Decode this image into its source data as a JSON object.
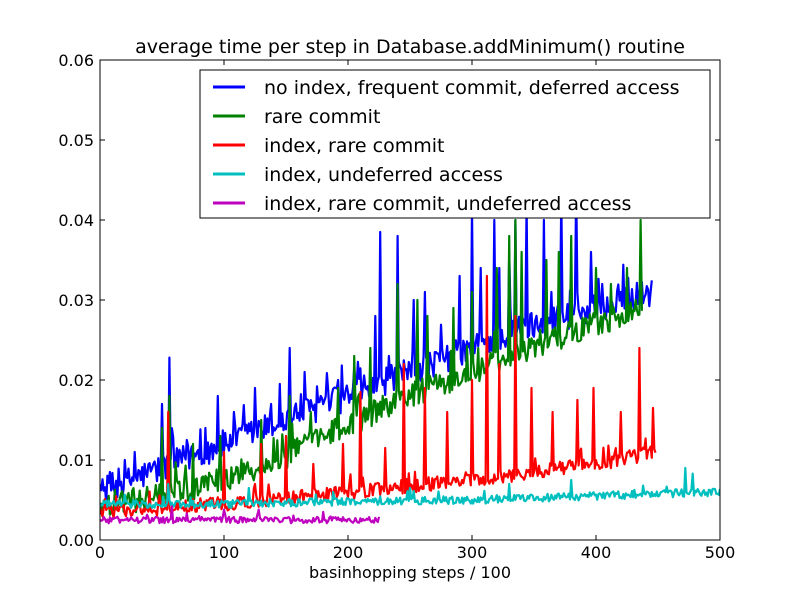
{
  "chart_data": {
    "type": "line",
    "title": "average time per step in Database.addMinimum() routine",
    "xlabel": "basinhopping steps / 100",
    "ylabel": "",
    "xlim": [
      0,
      500
    ],
    "ylim": [
      0,
      0.06
    ],
    "x_ticks": [
      0,
      100,
      200,
      300,
      400,
      500
    ],
    "x_tick_labels": [
      "0",
      "100",
      "200",
      "300",
      "400",
      "500"
    ],
    "y_ticks": [
      0,
      0.01,
      0.02,
      0.03,
      0.04,
      0.05,
      0.06
    ],
    "y_tick_labels": [
      "0.00",
      "0.01",
      "0.02",
      "0.03",
      "0.04",
      "0.05",
      "0.06"
    ],
    "legend_position": "top-right",
    "series": [
      {
        "name": "no index, frequent commit, deferred access",
        "color": "#0000ff",
        "x_start": 0,
        "x_end": 445,
        "trend": [
          [
            0,
            0.006
          ],
          [
            50,
            0.009
          ],
          [
            100,
            0.012
          ],
          [
            150,
            0.015
          ],
          [
            200,
            0.018
          ],
          [
            250,
            0.021
          ],
          [
            300,
            0.024
          ],
          [
            350,
            0.027
          ],
          [
            400,
            0.029
          ],
          [
            445,
            0.031
          ]
        ],
        "noise": 0.0018,
        "spikes": [
          [
            8,
            0.0085
          ],
          [
            20,
            0.01
          ],
          [
            28,
            0.011
          ],
          [
            43,
            0.0095
          ],
          [
            50,
            0.017
          ],
          [
            56,
            0.0228
          ],
          [
            70,
            0.0125
          ],
          [
            85,
            0.014
          ],
          [
            95,
            0.018
          ],
          [
            108,
            0.016
          ],
          [
            125,
            0.019
          ],
          [
            138,
            0.017
          ],
          [
            145,
            0.0195
          ],
          [
            153,
            0.024
          ],
          [
            165,
            0.021
          ],
          [
            178,
            0.018
          ],
          [
            192,
            0.02
          ],
          [
            205,
            0.0215
          ],
          [
            222,
            0.028
          ],
          [
            226,
            0.0385
          ],
          [
            233,
            0.023
          ],
          [
            240,
            0.038
          ],
          [
            253,
            0.03
          ],
          [
            262,
            0.031
          ],
          [
            290,
            0.033
          ],
          [
            300,
            0.0415
          ],
          [
            307,
            0.034
          ],
          [
            318,
            0.04
          ],
          [
            322,
            0.034
          ],
          [
            330,
            0.036
          ],
          [
            335,
            0.04
          ],
          [
            344,
            0.042
          ],
          [
            358,
            0.04
          ],
          [
            364,
            0.031
          ],
          [
            372,
            0.043
          ],
          [
            384,
            0.044
          ],
          [
            396,
            0.036
          ],
          [
            405,
            0.032
          ],
          [
            420,
            0.031
          ]
        ]
      },
      {
        "name": "rare commit",
        "color": "#008000",
        "x_start": 0,
        "x_end": 437,
        "trend": [
          [
            0,
            0.0045
          ],
          [
            50,
            0.0055
          ],
          [
            100,
            0.0075
          ],
          [
            150,
            0.0105
          ],
          [
            200,
            0.0145
          ],
          [
            250,
            0.018
          ],
          [
            300,
            0.021
          ],
          [
            350,
            0.024
          ],
          [
            400,
            0.027
          ],
          [
            437,
            0.029
          ]
        ],
        "noise": 0.0016,
        "spikes": [
          [
            50,
            0.014
          ],
          [
            56,
            0.018
          ],
          [
            75,
            0.012
          ],
          [
            97,
            0.013
          ],
          [
            130,
            0.015
          ],
          [
            153,
            0.018
          ],
          [
            170,
            0.016
          ],
          [
            192,
            0.019
          ],
          [
            205,
            0.023
          ],
          [
            218,
            0.024
          ],
          [
            240,
            0.032
          ],
          [
            256,
            0.03
          ],
          [
            264,
            0.028
          ],
          [
            285,
            0.029
          ],
          [
            300,
            0.031
          ],
          [
            320,
            0.034
          ],
          [
            330,
            0.038
          ],
          [
            335,
            0.04
          ],
          [
            340,
            0.036
          ],
          [
            360,
            0.035
          ],
          [
            370,
            0.036
          ],
          [
            380,
            0.038
          ],
          [
            400,
            0.034
          ],
          [
            412,
            0.032
          ],
          [
            425,
            0.034
          ],
          [
            436,
            0.04
          ]
        ]
      },
      {
        "name": "index, rare commit",
        "color": "#ff0000",
        "x_start": 0,
        "x_end": 448,
        "trend": [
          [
            0,
            0.0035
          ],
          [
            50,
            0.004
          ],
          [
            100,
            0.0045
          ],
          [
            150,
            0.0052
          ],
          [
            200,
            0.006
          ],
          [
            250,
            0.0068
          ],
          [
            300,
            0.0075
          ],
          [
            350,
            0.0085
          ],
          [
            400,
            0.0095
          ],
          [
            448,
            0.011
          ]
        ],
        "noise": 0.0009,
        "spikes": [
          [
            55,
            0.016
          ],
          [
            100,
            0.011
          ],
          [
            130,
            0.012
          ],
          [
            150,
            0.013
          ],
          [
            172,
            0.0095
          ],
          [
            196,
            0.012
          ],
          [
            210,
            0.0185
          ],
          [
            230,
            0.0115
          ],
          [
            245,
            0.022
          ],
          [
            262,
            0.019
          ],
          [
            280,
            0.016
          ],
          [
            300,
            0.02
          ],
          [
            312,
            0.033
          ],
          [
            322,
            0.022
          ],
          [
            335,
            0.028
          ],
          [
            348,
            0.019
          ],
          [
            365,
            0.016
          ],
          [
            385,
            0.0175
          ],
          [
            398,
            0.019
          ],
          [
            420,
            0.016
          ],
          [
            435,
            0.024
          ],
          [
            446,
            0.0165
          ]
        ]
      },
      {
        "name": "index, undeferred access",
        "color": "#00bfbf",
        "x_start": 0,
        "x_end": 500,
        "trend": [
          [
            0,
            0.0045
          ],
          [
            100,
            0.0045
          ],
          [
            200,
            0.0048
          ],
          [
            300,
            0.005
          ],
          [
            400,
            0.0055
          ],
          [
            500,
            0.006
          ]
        ],
        "noise": 0.0005,
        "spikes": [
          [
            55,
            0.007
          ],
          [
            120,
            0.0065
          ],
          [
            250,
            0.0065
          ],
          [
            330,
            0.007
          ],
          [
            380,
            0.0075
          ],
          [
            472,
            0.009
          ],
          [
            478,
            0.0083
          ]
        ]
      },
      {
        "name": "index, rare commit, undeferred access",
        "color": "#bf00bf",
        "x_start": 0,
        "x_end": 225,
        "trend": [
          [
            0,
            0.0025
          ],
          [
            100,
            0.0025
          ],
          [
            225,
            0.0025
          ]
        ],
        "noise": 0.0004,
        "spikes": [
          [
            58,
            0.0042
          ],
          [
            100,
            0.0038
          ],
          [
            128,
            0.0038
          ],
          [
            180,
            0.0035
          ]
        ]
      }
    ]
  }
}
